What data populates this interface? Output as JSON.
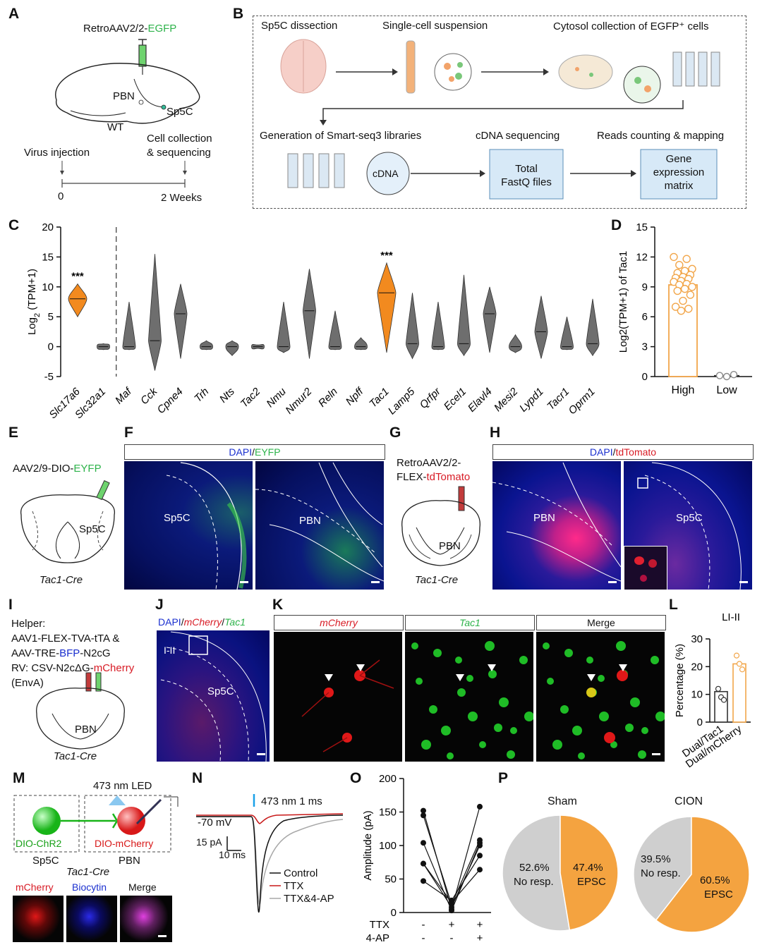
{
  "panels": {
    "A": "A",
    "B": "B",
    "C": "C",
    "D": "D",
    "E": "E",
    "F": "F",
    "G": "G",
    "H": "H",
    "I": "I",
    "J": "J",
    "K": "K",
    "L": "L",
    "M": "M",
    "N": "N",
    "O": "O",
    "P": "P"
  },
  "panelA": {
    "virus_prefix": "RetroAAV2/2-",
    "virus_suffix": "EGFP",
    "pbn": "PBN",
    "sp5c": "Sp5C",
    "wt": "WT",
    "virus_injection": "Virus injection",
    "cell_collection_1": "Cell collection",
    "cell_collection_2": "& sequencing",
    "t0": "0",
    "t2": "2 Weeks"
  },
  "panelB": {
    "step1": "Sp5C dissection",
    "step2": "Single-cell suspension",
    "step3": "Cytosol collection of EGFP⁺ cells",
    "step4": "Generation of Smart-seq3 libraries",
    "step5": "cDNA sequencing",
    "step6": "Reads counting & mapping",
    "cdna": "cDNA",
    "box1_l1": "Total",
    "box1_l2": "FastQ files",
    "box2_l1": "Gene",
    "box2_l2": "expression",
    "box2_l3": "matrix"
  },
  "panelE": {
    "virus_prefix": "AAV2/9-DIO-",
    "virus_suffix": "EYFP",
    "sp5c": "Sp5C",
    "mouse": "Tac1-Cre"
  },
  "panelF": {
    "header_a": "DAPI",
    "header_sep": "/",
    "header_b": "EYFP",
    "label1": "Sp5C",
    "label2": "PBN"
  },
  "panelG": {
    "virus_l1": "RetroAAV2/2-",
    "virus_l2_prefix": "FLEX-",
    "virus_l2_suffix": "tdTomato",
    "pbn": "PBN",
    "mouse": "Tac1-Cre"
  },
  "panelH": {
    "header_a": "DAPI",
    "header_sep": "/",
    "header_b": "tdTomato",
    "label1": "PBN",
    "label2": "Sp5C"
  },
  "panelI": {
    "l1": "Helper:",
    "l2": "AAV1-FLEX-TVA-tTA &",
    "l3_prefix": "AAV-TRE-",
    "l3_mid": "BFP",
    "l3_suffix": "-N2cG",
    "l4_prefix": "RV: CSV-N2cΔG-",
    "l4_suffix": "mCherry",
    "l5": "(EnvA)",
    "pbn": "PBN",
    "mouse": "Tac1-Cre"
  },
  "panelJ": {
    "h_a": "DAPI",
    "h_sep1": "/",
    "h_b": "mCherry",
    "h_sep2": "/",
    "h_c": "Tac1",
    "layer": "I-II",
    "sp5c": "Sp5C"
  },
  "panelK": {
    "h1": "mCherry",
    "h2": "Tac1",
    "h3": "Merge"
  },
  "panelM": {
    "led": "473 nm LED",
    "left_label": "DIO-ChR2",
    "right_label": "DIO-mCherry",
    "left_region": "Sp5C",
    "right_region": "PBN",
    "mouse": "Tac1-Cre",
    "h1": "mCherry",
    "h2": "Biocytin",
    "h3": "Merge"
  },
  "panelN": {
    "stim": "473 nm 1 ms",
    "hold": "-70 mV",
    "scale_y": "15 pA",
    "scale_x": "10 ms",
    "leg1": "Control",
    "leg2": "TTX",
    "leg3": "TTX&4-AP"
  },
  "panelP": {
    "title1": "Sham",
    "title2": "CION",
    "sham_no_pct": "52.6%",
    "sham_no": "No resp.",
    "sham_e_pct": "47.4%",
    "sham_e": "EPSC",
    "cion_no_pct": "39.5%",
    "cion_no": "No resp.",
    "cion_e_pct": "60.5%",
    "cion_e": "EPSC"
  },
  "chart_data": [
    {
      "panel": "C",
      "type": "violin",
      "ylabel": "Log2(TPM+1)",
      "ylim": [
        -5,
        20
      ],
      "yticks": [
        -5,
        0,
        5,
        10,
        15,
        20
      ],
      "categories": [
        "Slc17a6",
        "Slc32a1",
        "Maf",
        "Cck",
        "Cpne4",
        "Trh",
        "Nts",
        "Tac2",
        "Nmu",
        "Nmur2",
        "Reln",
        "Npff",
        "Tac1",
        "Lamp5",
        "Qrfpr",
        "Ecel1",
        "Elavl4",
        "Mesi2",
        "Lypd1",
        "Tacr1",
        "Oprm1"
      ],
      "medians": [
        8,
        0,
        0,
        1,
        5.5,
        0,
        0,
        0,
        0,
        6,
        0,
        0,
        9,
        0.5,
        0,
        0.5,
        5.5,
        0,
        2.5,
        0,
        0.5
      ],
      "ranges": [
        [
          5,
          10.5
        ],
        [
          -0.5,
          0.5
        ],
        [
          -0.5,
          7.5
        ],
        [
          -4,
          15.5
        ],
        [
          -2,
          10.5
        ],
        [
          -0.5,
          1
        ],
        [
          -1.5,
          1
        ],
        [
          -0.3,
          0.3
        ],
        [
          -1,
          7.5
        ],
        [
          -2,
          13
        ],
        [
          -0.5,
          6
        ],
        [
          -0.5,
          1.5
        ],
        [
          -1,
          14
        ],
        [
          -2,
          9
        ],
        [
          -0.5,
          7.5
        ],
        [
          -1.5,
          12
        ],
        [
          -1,
          10
        ],
        [
          -1,
          2
        ],
        [
          -2,
          8.5
        ],
        [
          -0.5,
          5
        ],
        [
          -1.5,
          8
        ]
      ],
      "highlighted": [
        "Slc17a6",
        "Tac1"
      ],
      "significance": "***",
      "colors": {
        "highlight": "#f28a1f",
        "other": "#6e6e6e"
      }
    },
    {
      "panel": "D",
      "type": "bar",
      "ylabel": "Log2(TPM+1) of Tac1",
      "categories": [
        "High",
        "Low"
      ],
      "values": [
        9.2,
        0.1
      ],
      "ylim": [
        0,
        15
      ],
      "yticks": [
        0,
        3,
        6,
        9,
        12,
        15
      ],
      "points_high": [
        12.0,
        11.8,
        11.2,
        10.8,
        10.6,
        10.4,
        10.2,
        10.0,
        9.9,
        9.8,
        9.6,
        9.5,
        9.3,
        9.2,
        9.0,
        8.8,
        8.6,
        8.2,
        7.6,
        7.0,
        6.8,
        6.6
      ],
      "points_low": [
        0.1,
        0.0,
        0.2
      ],
      "colors": {
        "high": "#f2a64a",
        "low": "#888888"
      }
    },
    {
      "panel": "L",
      "type": "bar",
      "title": "LI-II",
      "ylabel": "Percentage (%)",
      "categories": [
        "Dual/Tac1",
        "Dual/mCherry"
      ],
      "values": [
        11,
        21
      ],
      "ylim": [
        0,
        30
      ],
      "yticks": [
        0,
        10,
        20,
        30
      ],
      "points": [
        [
          12,
          9,
          8
        ],
        [
          24,
          21,
          19
        ]
      ]
    },
    {
      "panel": "O",
      "type": "paired-scatter",
      "ylabel": "Amplitude (pA)",
      "ylim": [
        0,
        200
      ],
      "yticks": [
        0,
        50,
        100,
        150,
        200
      ],
      "conditions": [
        {
          "TTX": "-",
          "4-AP": "-"
        },
        {
          "TTX": "+",
          "4-AP": "-"
        },
        {
          "TTX": "+",
          "4-AP": "+"
        }
      ],
      "row_labels": [
        "TTX",
        "4-AP"
      ],
      "series": [
        [
          152,
          5,
          158
        ],
        [
          145,
          12,
          108
        ],
        [
          104,
          3,
          104
        ],
        [
          73,
          8,
          100
        ],
        [
          47,
          18,
          85
        ],
        [
          73,
          15,
          64
        ]
      ]
    },
    {
      "panel": "P",
      "type": "pie",
      "series": [
        {
          "name": "Sham",
          "values": [
            52.6,
            47.4
          ]
        },
        {
          "name": "CION",
          "values": [
            39.5,
            60.5
          ]
        }
      ],
      "labels": [
        "No resp.",
        "EPSC"
      ],
      "colors": {
        "no": "#cfcfcf",
        "epsc": "#f4a340"
      }
    }
  ]
}
